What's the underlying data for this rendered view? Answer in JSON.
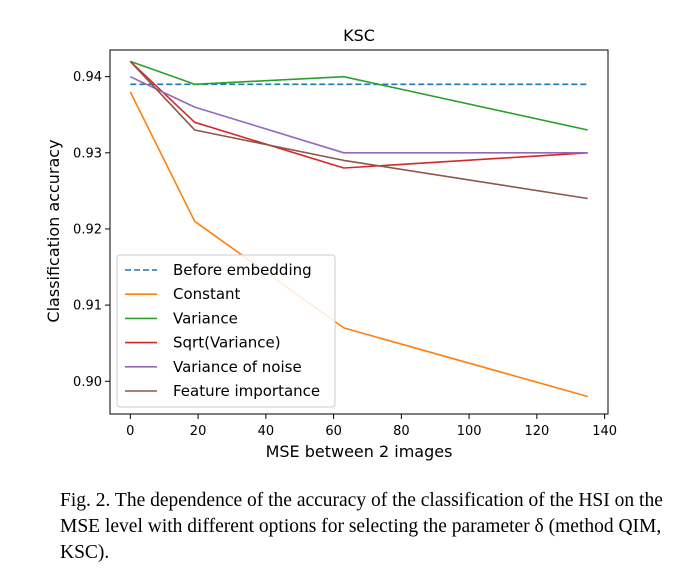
{
  "chart_data": {
    "type": "line",
    "title": "KSC",
    "xlabel": "MSE between 2 images",
    "ylabel": "Classification accuracy",
    "xlim": [
      -6,
      141
    ],
    "ylim": [
      0.8957,
      0.9435
    ],
    "xticks": [
      0,
      20,
      40,
      60,
      80,
      100,
      120,
      140
    ],
    "yticks": [
      0.9,
      0.91,
      0.92,
      0.93,
      0.94
    ],
    "ytick_labels": [
      "0.90",
      "0.91",
      "0.92",
      "0.93",
      "0.94"
    ],
    "legend_position": "lower-left",
    "series": [
      {
        "name": "Before embedding",
        "color": "#1f77b4",
        "style": "dashed",
        "x": [
          0,
          135
        ],
        "y": [
          0.939,
          0.939
        ]
      },
      {
        "name": "Constant",
        "color": "#ff7f0e",
        "style": "solid",
        "x": [
          0,
          19,
          63,
          135
        ],
        "y": [
          0.938,
          0.921,
          0.907,
          0.898
        ]
      },
      {
        "name": "Variance",
        "color": "#2ca02c",
        "style": "solid",
        "x": [
          0,
          19,
          63,
          135
        ],
        "y": [
          0.942,
          0.939,
          0.94,
          0.933
        ]
      },
      {
        "name": "Sqrt(Variance)",
        "color": "#d62728",
        "style": "solid",
        "x": [
          0,
          19,
          63,
          135
        ],
        "y": [
          0.942,
          0.934,
          0.928,
          0.93
        ]
      },
      {
        "name": "Variance of noise",
        "color": "#9467bd",
        "style": "solid",
        "x": [
          0,
          19,
          63,
          135
        ],
        "y": [
          0.94,
          0.936,
          0.93,
          0.93
        ]
      },
      {
        "name": "Feature importance",
        "color": "#8c564b",
        "style": "solid",
        "x": [
          0,
          19,
          63,
          135
        ],
        "y": [
          0.942,
          0.933,
          0.929,
          0.924
        ]
      }
    ]
  },
  "caption": {
    "text": "Fig. 2.   The dependence of the accuracy of the classification of the HSI on the MSE level with different options for selecting the parameter δ (method QIM, KSC)."
  }
}
